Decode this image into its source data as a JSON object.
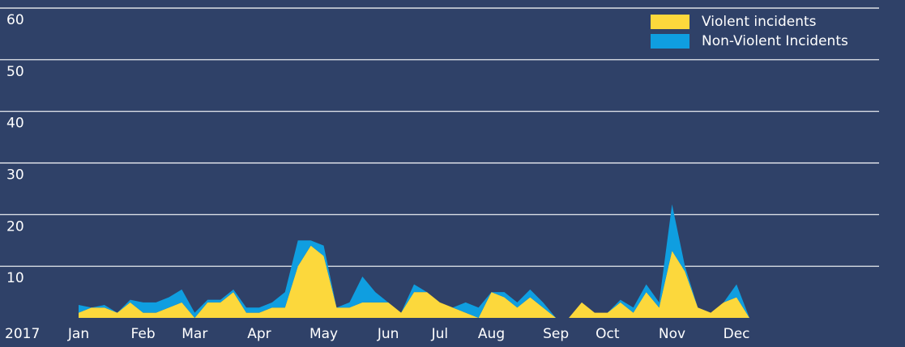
{
  "chart_data": {
    "type": "stacked_area",
    "year_label": "2017",
    "categories": [
      "Jan",
      null,
      null,
      null,
      null,
      "Feb",
      null,
      null,
      null,
      "Mar",
      null,
      null,
      null,
      null,
      "Apr",
      null,
      null,
      null,
      null,
      "May",
      null,
      null,
      null,
      null,
      "Jun",
      null,
      null,
      null,
      "Jul",
      null,
      null,
      null,
      "Aug",
      null,
      null,
      null,
      null,
      "Sep",
      null,
      null,
      null,
      "Oct",
      null,
      null,
      null,
      null,
      "Nov",
      null,
      null,
      null,
      null,
      "Dec",
      null
    ],
    "series": [
      {
        "name": "Violent incidents",
        "color": "#fcd83c",
        "values": [
          1,
          2,
          2,
          1,
          3,
          1,
          1,
          2,
          3,
          0,
          3,
          3,
          5,
          1,
          1,
          2,
          2,
          10,
          14,
          12,
          2,
          2,
          3,
          3,
          3,
          1,
          5,
          5,
          3,
          2,
          1,
          0,
          5,
          4,
          2,
          4,
          2,
          0,
          0,
          3,
          1,
          1,
          3,
          1,
          5,
          2,
          13,
          9,
          2,
          1,
          3,
          4,
          0
        ]
      },
      {
        "name": "Non-Violent Incidents",
        "color": "#0f9ee0",
        "values": [
          1.5,
          0,
          0.5,
          0,
          0.5,
          2,
          2,
          2,
          2.5,
          1,
          0.5,
          0.5,
          0.5,
          1,
          1,
          1,
          3,
          5,
          1,
          2,
          0,
          1,
          5,
          2,
          0,
          0,
          1.5,
          0,
          0,
          0,
          2,
          2,
          0,
          1,
          1,
          1.5,
          1,
          0,
          0,
          0,
          0,
          0,
          0.5,
          1,
          1.5,
          1,
          9,
          1,
          0,
          0,
          0,
          2.5,
          0
        ]
      }
    ],
    "ylim": [
      0,
      60
    ],
    "yticks": [
      10,
      20,
      30,
      40,
      50,
      60
    ],
    "grid": true,
    "legend": "top-right"
  }
}
